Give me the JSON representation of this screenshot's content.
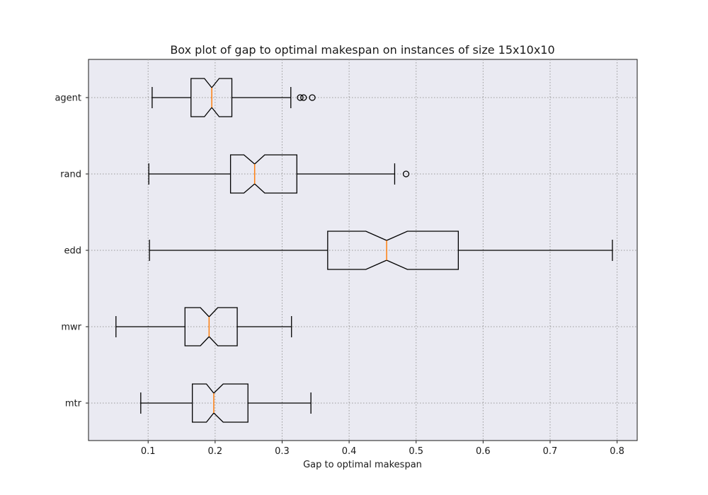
{
  "chart_data": {
    "type": "boxplot",
    "orientation": "horizontal",
    "notched": true,
    "title": "Box plot of gap to optimal makespan on instances of size 15x10x10",
    "xlabel": "Gap to optimal makespan",
    "ylabel": "",
    "xlim": [
      0.011,
      0.83
    ],
    "xticks": [
      0.1,
      0.2,
      0.3,
      0.4,
      0.5,
      0.6,
      0.7,
      0.8
    ],
    "xtick_labels": [
      "0.1",
      "0.2",
      "0.3",
      "0.4",
      "0.5",
      "0.6",
      "0.7",
      "0.8"
    ],
    "grid": true,
    "categories": [
      "agent",
      "rand",
      "edd",
      "mwr",
      "mtr"
    ],
    "series": [
      {
        "label": "agent",
        "whisker_low": 0.106,
        "q1": 0.164,
        "median": 0.195,
        "q3": 0.225,
        "whisker_high": 0.313,
        "notch_low": 0.184,
        "notch_high": 0.206,
        "fliers": [
          0.327,
          0.332,
          0.345
        ]
      },
      {
        "label": "rand",
        "whisker_low": 0.101,
        "q1": 0.223,
        "median": 0.259,
        "q3": 0.322,
        "whisker_high": 0.468,
        "notch_low": 0.243,
        "notch_high": 0.274,
        "fliers": [
          0.485
        ]
      },
      {
        "label": "edd",
        "whisker_low": 0.102,
        "q1": 0.368,
        "median": 0.456,
        "q3": 0.563,
        "whisker_high": 0.793,
        "notch_low": 0.425,
        "notch_high": 0.487,
        "fliers": []
      },
      {
        "label": "mwr",
        "whisker_low": 0.052,
        "q1": 0.155,
        "median": 0.191,
        "q3": 0.233,
        "whisker_high": 0.314,
        "notch_low": 0.178,
        "notch_high": 0.204,
        "fliers": []
      },
      {
        "label": "mtr",
        "whisker_low": 0.089,
        "q1": 0.166,
        "median": 0.198,
        "q3": 0.249,
        "whisker_high": 0.343,
        "notch_low": 0.187,
        "notch_high": 0.212,
        "fliers": []
      }
    ],
    "colors": {
      "background": "#eaeaf2",
      "box": "#000000",
      "median": "#ff7f0e",
      "grid": "#9a9a9a"
    }
  }
}
